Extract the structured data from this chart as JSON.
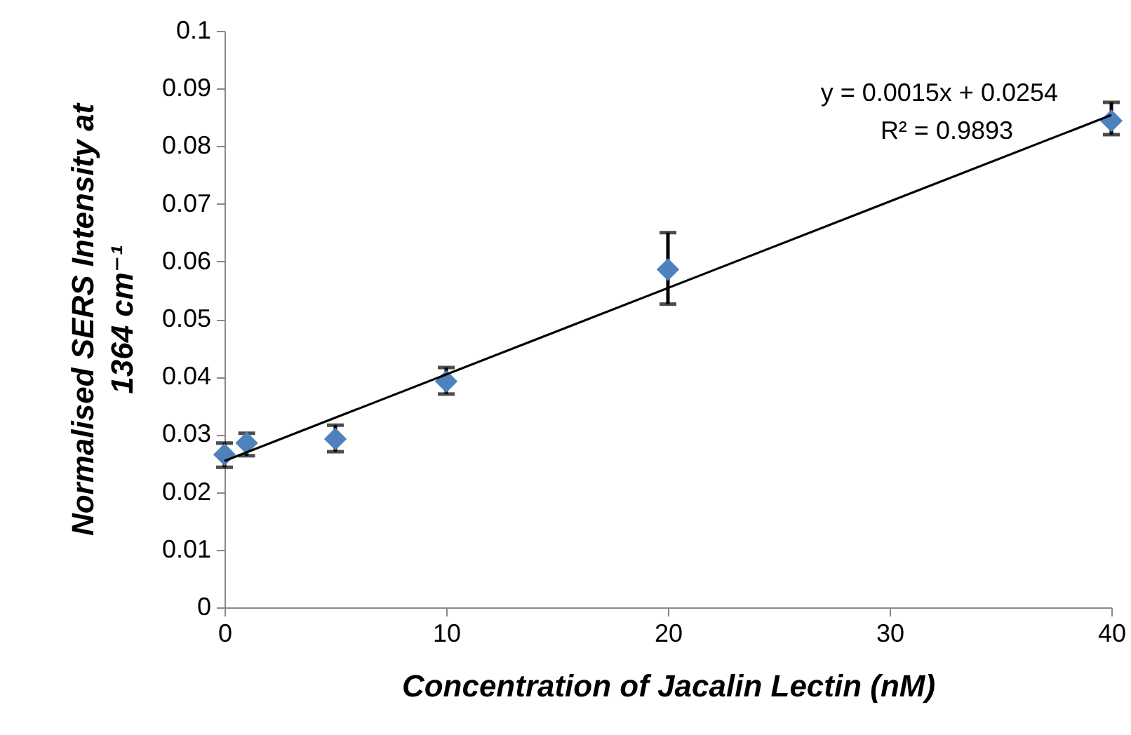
{
  "chart_data": {
    "type": "scatter",
    "xlabel": "Concentration of Jacalin Lectin (nM)",
    "ylabel": "Normalised SERS Intensity at 1364 cm⁻¹",
    "xlim": [
      0,
      40
    ],
    "xticks": [
      0,
      10,
      20,
      30,
      40
    ],
    "ylim": [
      0,
      0.1
    ],
    "yticks": [
      0,
      0.01,
      0.02,
      0.03,
      0.04,
      0.05,
      0.06,
      0.07,
      0.08,
      0.09,
      0.1
    ],
    "grid": false,
    "annotations": [
      "y = 0.0015x + 0.0254",
      "R² = 0.9893"
    ],
    "series": [
      {
        "type": "scatter",
        "marker": "diamond",
        "color": "#4f81bd",
        "x": [
          0,
          1,
          5,
          10,
          20,
          40
        ],
        "values": [
          0.0265,
          0.0285,
          0.0292,
          0.0392,
          0.0586,
          0.0844
        ],
        "errors": [
          [
            0.0243,
            0.0285
          ],
          [
            0.0263,
            0.0302
          ],
          [
            0.027,
            0.0316
          ],
          [
            0.037,
            0.0416
          ],
          [
            0.0526,
            0.065
          ],
          [
            0.082,
            0.0876
          ]
        ]
      },
      {
        "type": "line",
        "color": "#000000",
        "x": [
          0,
          40
        ],
        "values": [
          0.0254,
          0.0854
        ]
      }
    ]
  }
}
